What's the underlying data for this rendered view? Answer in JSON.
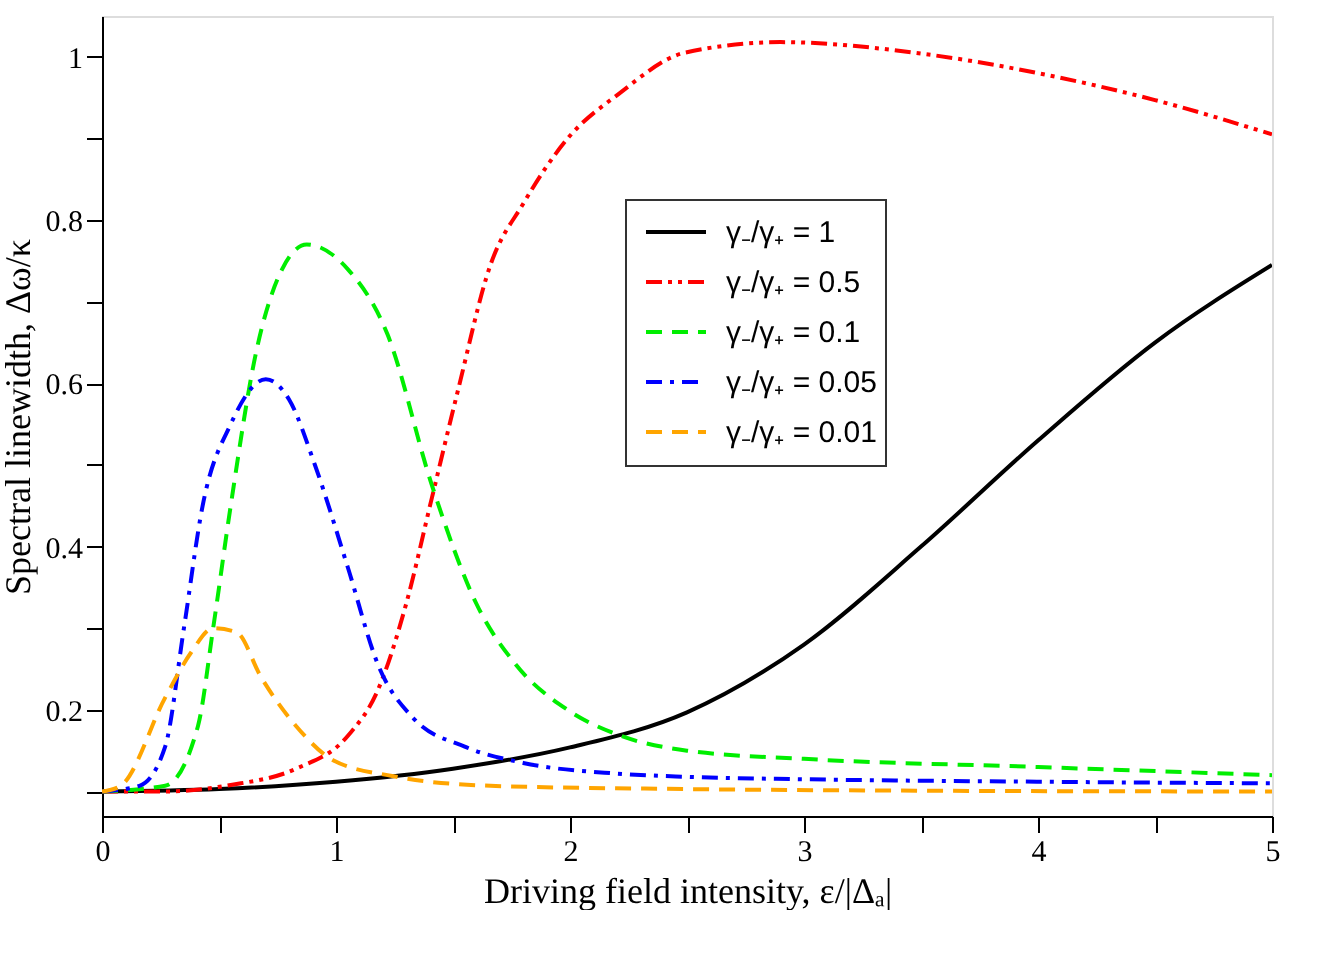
{
  "chart_data": {
    "type": "line",
    "xlabel": "Driving field intensity, ε/|Δₐ|",
    "ylabel": "Spectral linewidth,  Δω/κ",
    "xlim": [
      0,
      5
    ],
    "ylim": [
      0.07,
      1.05
    ],
    "xticks": [
      0,
      {
        "value": 0.5,
        "label": null
      },
      1,
      {
        "value": 1.5,
        "label": null
      },
      2,
      {
        "value": 2.5,
        "label": null
      },
      3,
      {
        "value": 3.5,
        "label": null
      },
      4,
      {
        "value": 4.5,
        "label": null
      },
      5
    ],
    "yticks": [
      {
        "value": 0.1,
        "label": null
      },
      0.2,
      {
        "value": 0.3,
        "label": null
      },
      0.4,
      {
        "value": 0.5,
        "label": null
      },
      0.6,
      {
        "value": 0.7,
        "label": null
      },
      0.8,
      {
        "value": 0.9,
        "label": null
      },
      1
    ],
    "grid": false,
    "legend": "top right",
    "marker": "none",
    "series": [
      {
        "name": "γ₋/γ₊ = 1",
        "color": "#000000",
        "line_style": "solid",
        "x": [
          0,
          0.5,
          1,
          1.5,
          2,
          2.5,
          3,
          3.5,
          4,
          4.5,
          5
        ],
        "values": [
          0.1,
          0.103,
          0.112,
          0.128,
          0.154,
          0.197,
          0.28,
          0.4,
          0.53,
          0.65,
          0.745
        ]
      },
      {
        "name": "γ₋/γ₊ = 0.5",
        "color": "#ff0000",
        "line_style": "dashdotdot",
        "x": [
          0,
          0.27,
          0.55,
          0.83,
          1.05,
          1.18,
          1.3,
          1.41,
          1.52,
          1.66,
          1.8,
          1.99,
          2.21,
          2.49,
          2.9,
          3.5,
          4,
          4.5,
          5
        ],
        "values": [
          0.1,
          0.1,
          0.108,
          0.128,
          0.168,
          0.225,
          0.33,
          0.46,
          0.59,
          0.745,
          0.82,
          0.9,
          0.955,
          1.005,
          1.018,
          1.004,
          0.98,
          0.947,
          0.905
        ]
      },
      {
        "name": "γ₋/γ₊ = 0.1",
        "color": "#00ee00",
        "line_style": "dashed",
        "x": [
          0,
          0.27,
          0.41,
          0.475,
          0.55,
          0.66,
          0.77,
          0.875,
          1.05,
          1.22,
          1.41,
          1.6,
          1.77,
          1.99,
          2.2,
          2.5,
          3,
          4,
          5
        ],
        "values": [
          0.1,
          0.107,
          0.18,
          0.3,
          0.45,
          0.64,
          0.74,
          0.77,
          0.74,
          0.66,
          0.475,
          0.33,
          0.255,
          0.2,
          0.17,
          0.15,
          0.14,
          0.13,
          0.12
        ]
      },
      {
        "name": "γ₋/γ₊ = 0.05",
        "color": "#0000ff",
        "line_style": "dashdot",
        "x": [
          0,
          0.16,
          0.27,
          0.35,
          0.43,
          0.55,
          0.7,
          0.8,
          0.91,
          1.05,
          1.18,
          1.33,
          1.55,
          1.8,
          2.2,
          2.5,
          3,
          4,
          5
        ],
        "values": [
          0.1,
          0.107,
          0.155,
          0.3,
          0.45,
          0.55,
          0.605,
          0.58,
          0.5,
          0.375,
          0.255,
          0.19,
          0.155,
          0.135,
          0.122,
          0.118,
          0.115,
          0.112,
          0.11
        ]
      },
      {
        "name": "γ₋/γ₊ = 0.01",
        "color": "#ffa500",
        "line_style": "dashed",
        "x": [
          0,
          0.08,
          0.27,
          0.38,
          0.475,
          0.575,
          0.68,
          0.83,
          0.99,
          1.24,
          1.66,
          2.5,
          3.5,
          5
        ],
        "values": [
          0.1,
          0.107,
          0.215,
          0.27,
          0.3,
          0.295,
          0.24,
          0.18,
          0.138,
          0.119,
          0.107,
          0.103,
          0.101,
          0.1
        ]
      }
    ]
  }
}
